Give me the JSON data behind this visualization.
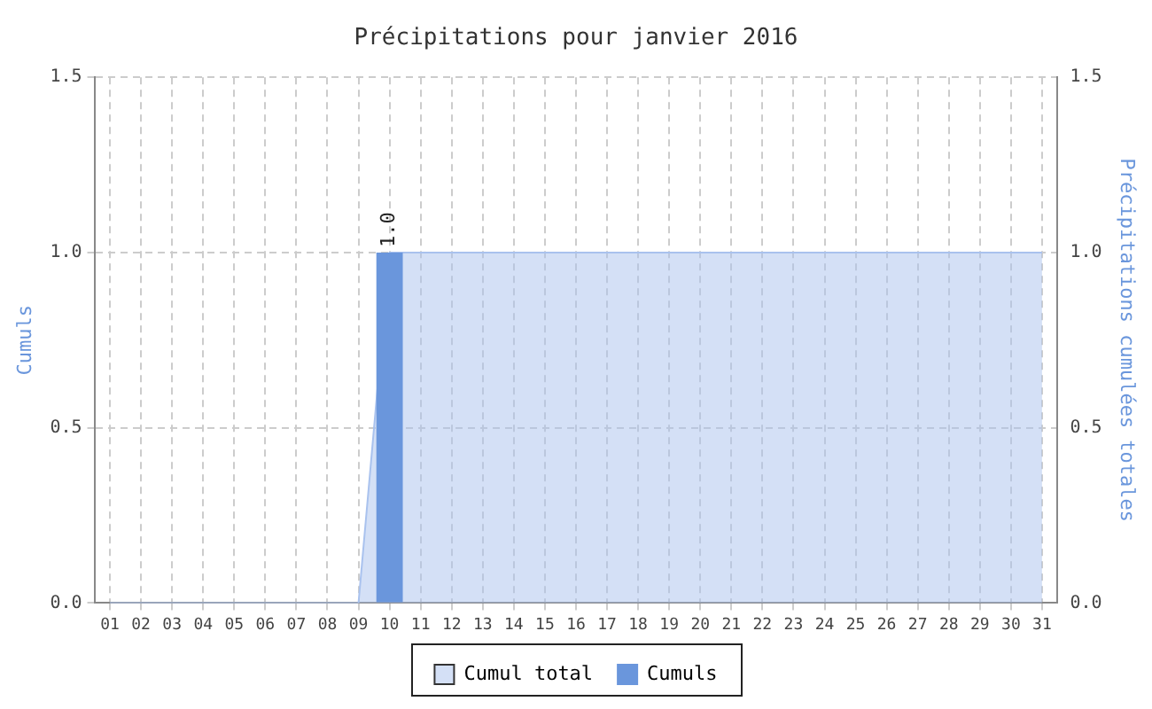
{
  "chart_data": {
    "type": "bar",
    "title": "Précipitations pour janvier 2016",
    "ylabel": "Cumuls",
    "y2label": "Précipitations cumulées totales",
    "categories": [
      "01",
      "02",
      "03",
      "04",
      "05",
      "06",
      "07",
      "08",
      "09",
      "10",
      "11",
      "12",
      "13",
      "14",
      "15",
      "16",
      "17",
      "18",
      "19",
      "20",
      "21",
      "22",
      "23",
      "24",
      "25",
      "26",
      "27",
      "28",
      "29",
      "30",
      "31"
    ],
    "series": [
      {
        "name": "Cumul total",
        "type": "area",
        "axis": "y2",
        "color": "#a9c2ee",
        "values": [
          0,
          0,
          0,
          0,
          0,
          0,
          0,
          0,
          0,
          1,
          1,
          1,
          1,
          1,
          1,
          1,
          1,
          1,
          1,
          1,
          1,
          1,
          1,
          1,
          1,
          1,
          1,
          1,
          1,
          1,
          1
        ]
      },
      {
        "name": "Cumuls",
        "color": "#6a96dc",
        "values": [
          0,
          0,
          0,
          0,
          0,
          0,
          0,
          0,
          0,
          1,
          0,
          0,
          0,
          0,
          0,
          0,
          0,
          0,
          0,
          0,
          0,
          0,
          0,
          0,
          0,
          0,
          0,
          0,
          0,
          0,
          0
        ],
        "value_labels": [
          null,
          null,
          null,
          null,
          null,
          null,
          null,
          null,
          null,
          "1.0",
          null,
          null,
          null,
          null,
          null,
          null,
          null,
          null,
          null,
          null,
          null,
          null,
          null,
          null,
          null,
          null,
          null,
          null,
          null,
          null,
          null
        ]
      }
    ],
    "ylim": [
      0,
      1.5
    ],
    "yticks": [
      {
        "value": 0,
        "label": "0.0"
      },
      {
        "value": 0.5,
        "label": "0.5"
      },
      {
        "value": 1,
        "label": "1.0"
      },
      {
        "value": 1.5,
        "label": "1.5"
      }
    ],
    "y2lim": [
      0,
      1.5
    ],
    "y2ticks": [
      {
        "value": 0,
        "label": "0.0"
      },
      {
        "value": 0.5,
        "label": "0.5"
      },
      {
        "value": 1,
        "label": "1.0"
      },
      {
        "value": 1.5,
        "label": "1.5"
      }
    ],
    "grid": true,
    "legend": "bottom",
    "marker": "none"
  }
}
